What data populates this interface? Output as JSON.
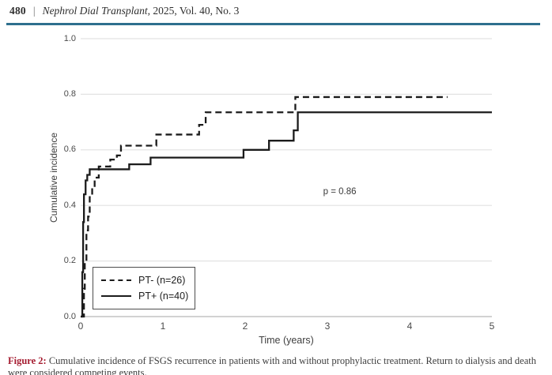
{
  "header": {
    "page_number": "480",
    "separator": "|",
    "journal": "Nephrol Dial Transplant",
    "issue_info": ", 2025, Vol. 40, No. 3",
    "rule_color": "#2e6f8e"
  },
  "caption": {
    "label": "Figure 2:",
    "text": " Cumulative incidence of FSGS recurrence in patients with and without prophylactic treatment. Return to dialysis and death were considered competing events.",
    "label_color": "#a51c30"
  },
  "chart_data": {
    "type": "line",
    "subtype": "cumulative-incidence-step",
    "title": "",
    "xlabel": "Time (years)",
    "ylabel": "Cumulative incidence",
    "xlim": [
      0,
      5
    ],
    "ylim": [
      0,
      1
    ],
    "xticks": [
      0,
      1,
      2,
      3,
      4,
      5
    ],
    "xtick_labels": [
      "0",
      "1",
      "2",
      "3",
      "4",
      "5"
    ],
    "yticks": [
      0.0,
      0.2,
      0.4,
      0.6,
      0.8,
      1.0
    ],
    "ytick_labels": [
      "0.0",
      "0.2",
      "0.4",
      "0.6",
      "0.8",
      "1.0"
    ],
    "grid": "horizontal",
    "gridline_color": "#e2e2e2",
    "axis_color": "#c4c4c4",
    "curve_color": "#1b1b1b",
    "legend_position": "lower-left",
    "annotations": [
      {
        "text": "p = 0.86",
        "x": 3.15,
        "y": 0.45
      }
    ],
    "series": [
      {
        "name": "PT- (n=26)",
        "style": "dashed",
        "color": "#1b1b1b",
        "step_points": [
          [
            0,
            0
          ],
          [
            0.04,
            0.1
          ],
          [
            0.05,
            0.2
          ],
          [
            0.07,
            0.31
          ],
          [
            0.09,
            0.36
          ],
          [
            0.11,
            0.43
          ],
          [
            0.14,
            0.47
          ],
          [
            0.17,
            0.5
          ],
          [
            0.22,
            0.54
          ],
          [
            0.36,
            0.565
          ],
          [
            0.44,
            0.58
          ],
          [
            0.49,
            0.615
          ],
          [
            0.92,
            0.655
          ],
          [
            1.44,
            0.69
          ],
          [
            1.52,
            0.735
          ],
          [
            2.61,
            0.79
          ]
        ],
        "end_time": 4.46
      },
      {
        "name": "PT+ (n=40)",
        "style": "solid",
        "color": "#1b1b1b",
        "step_points": [
          [
            0,
            0
          ],
          [
            0.02,
            0.16
          ],
          [
            0.03,
            0.34
          ],
          [
            0.04,
            0.44
          ],
          [
            0.06,
            0.49
          ],
          [
            0.08,
            0.51
          ],
          [
            0.11,
            0.53
          ],
          [
            0.59,
            0.548
          ],
          [
            0.85,
            0.572
          ],
          [
            1.98,
            0.6
          ],
          [
            2.29,
            0.633
          ],
          [
            2.59,
            0.67
          ],
          [
            2.64,
            0.735
          ]
        ],
        "end_time": 5.0
      }
    ]
  }
}
